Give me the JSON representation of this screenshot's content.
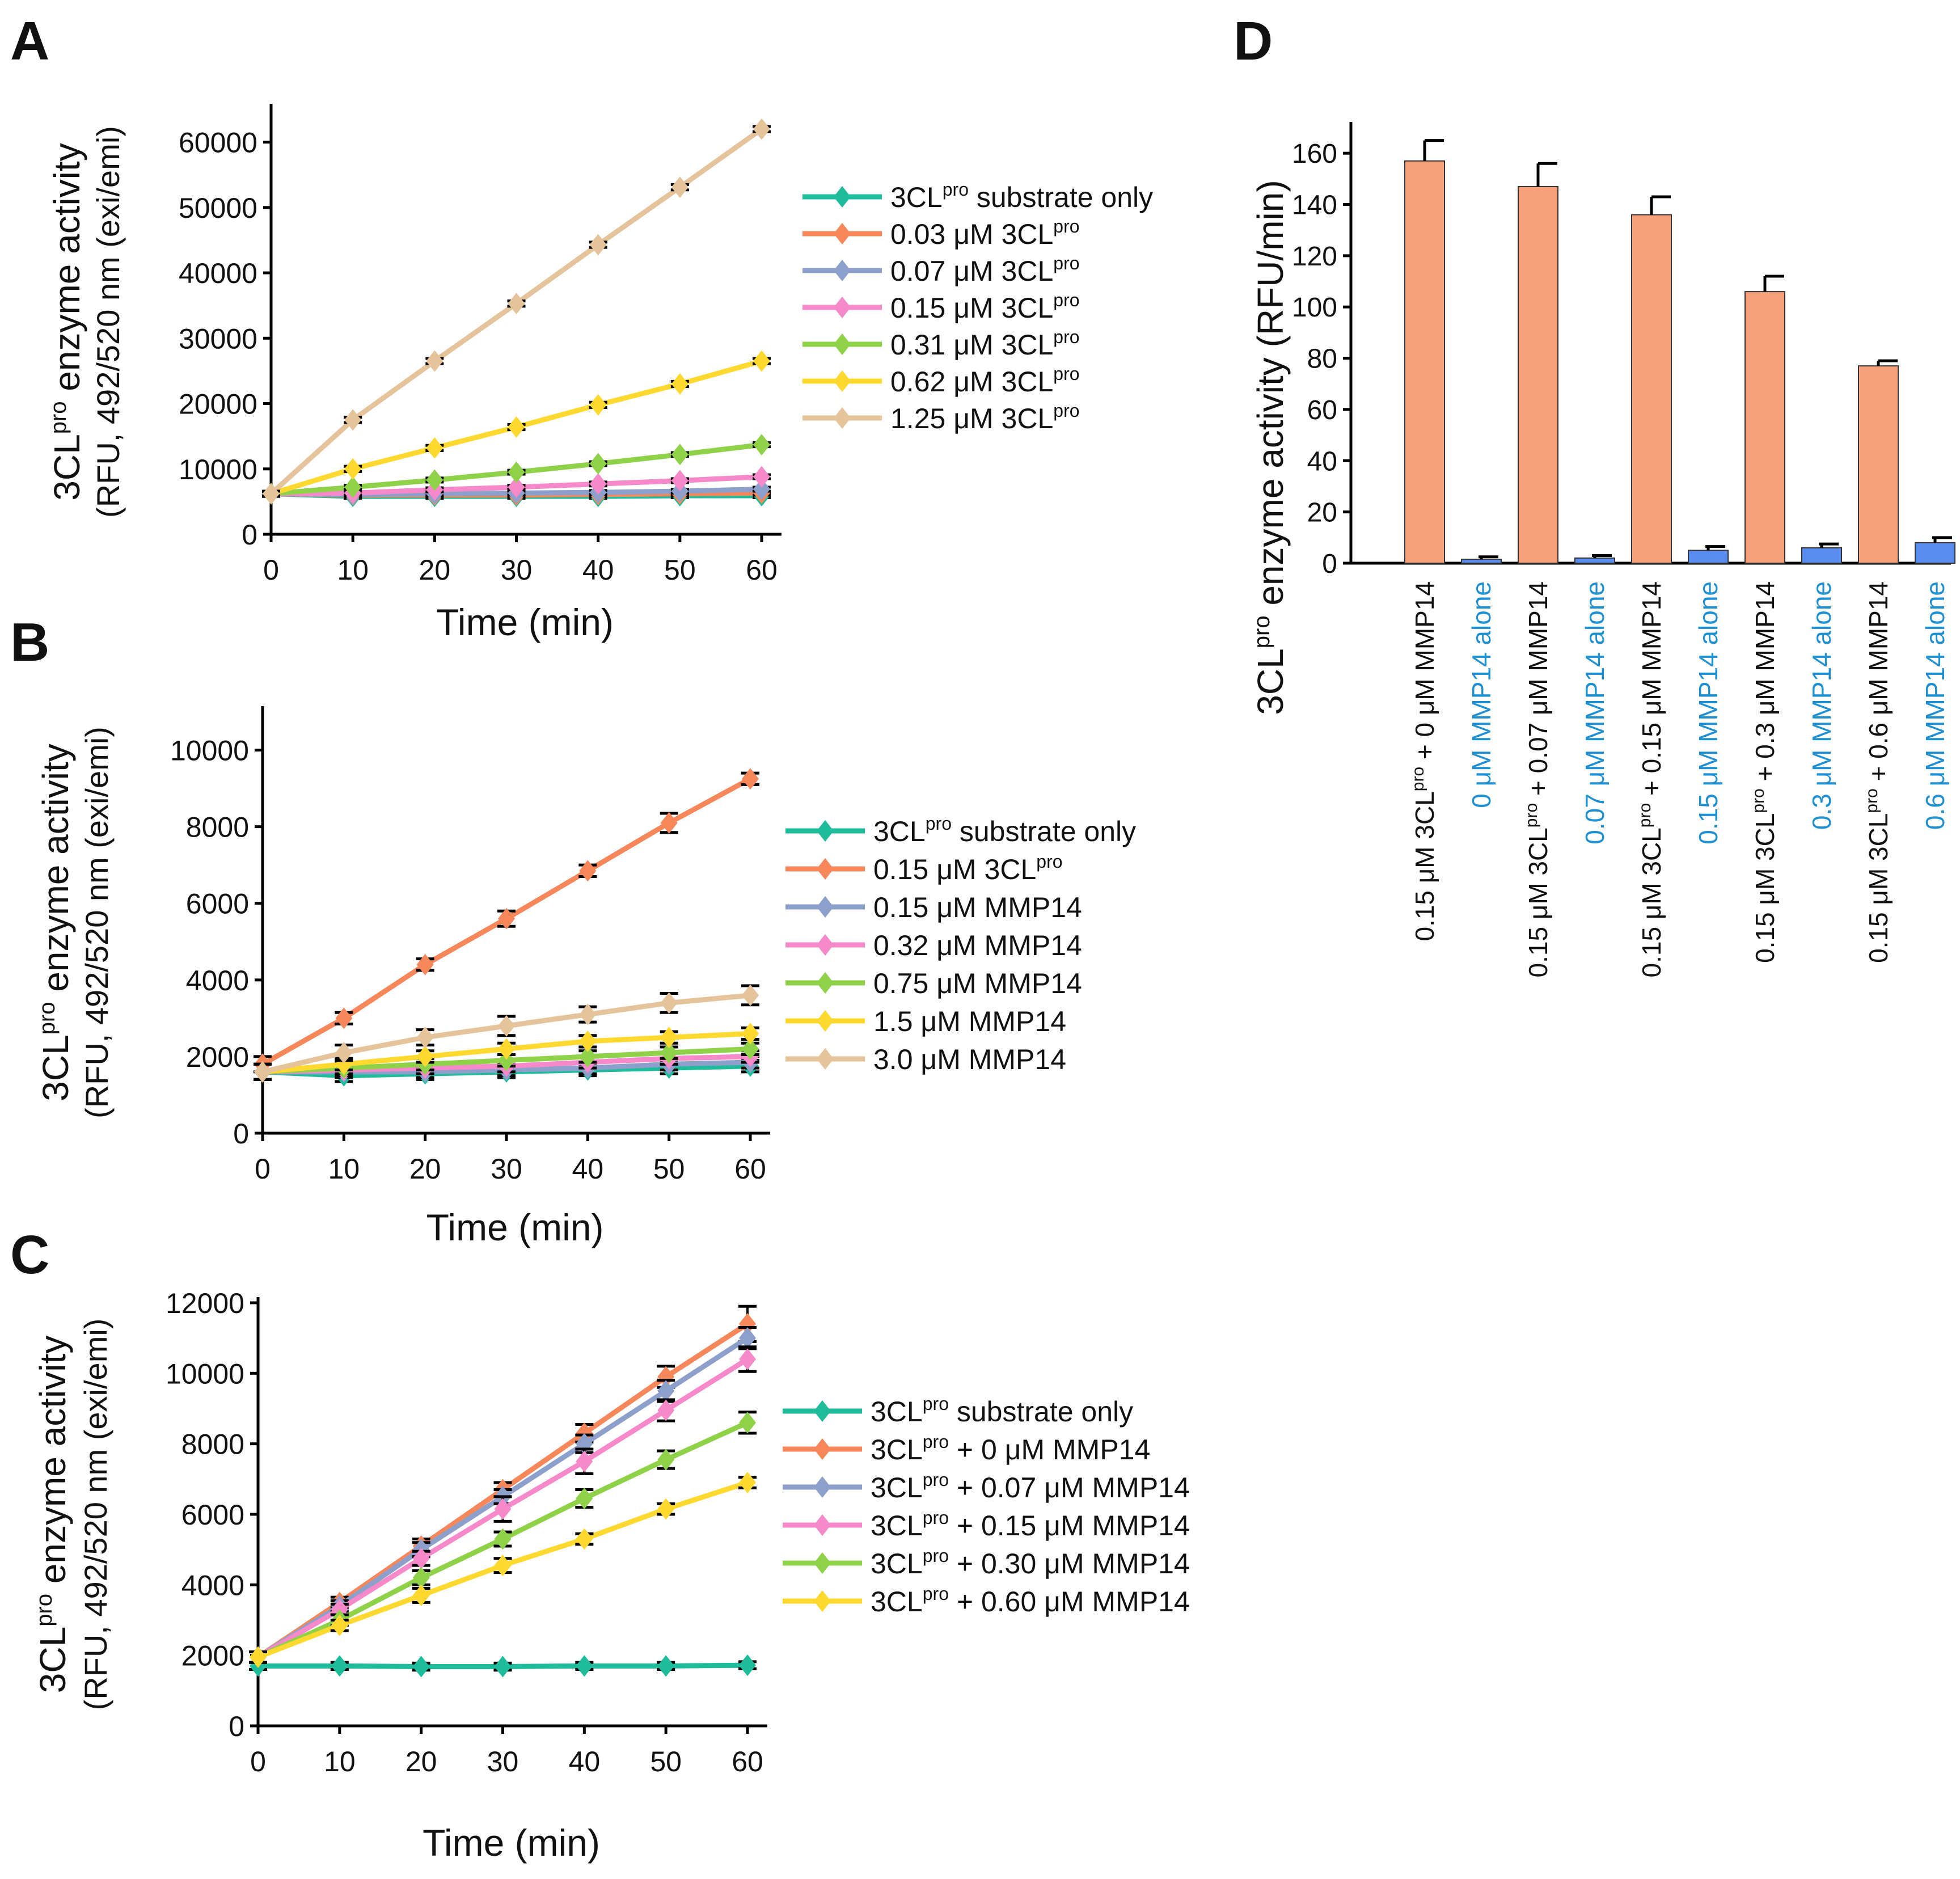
{
  "chart_data": [
    {
      "panel": "A",
      "type": "line",
      "ylabel_line1": "3CLpro enzyme activity",
      "ylabel_line2": "(RFU, 492/520 nm (exi/emi)",
      "xlabel": "Time (min)",
      "x": [
        0,
        10,
        20,
        30,
        40,
        50,
        60
      ],
      "ylim": [
        0,
        65000
      ],
      "yticks": [
        0,
        10000,
        20000,
        30000,
        40000,
        50000,
        60000
      ],
      "xticks": [
        0,
        10,
        20,
        30,
        40,
        50,
        60
      ],
      "series": [
        {
          "prefix": "3CL",
          "sup": "pro",
          "suffix": " substrate only",
          "color": "#1fbc9c",
          "values": [
            6200,
            5800,
            5800,
            5800,
            5800,
            5900,
            5900
          ],
          "err": [
            300,
            300,
            300,
            300,
            300,
            300,
            300
          ]
        },
        {
          "prefix": "0.03 μM 3CL",
          "sup": "pro",
          "suffix": "",
          "color": "#f5875b",
          "values": [
            6200,
            6000,
            6000,
            6000,
            6100,
            6200,
            6300
          ],
          "err": [
            300,
            300,
            300,
            300,
            300,
            300,
            300
          ]
        },
        {
          "prefix": "0.07 μM 3CL",
          "sup": "pro",
          "suffix": "",
          "color": "#8da0cb",
          "values": [
            6200,
            6100,
            6200,
            6300,
            6400,
            6600,
            6900
          ],
          "err": [
            300,
            300,
            300,
            300,
            300,
            300,
            300
          ]
        },
        {
          "prefix": "0.15 μM 3CL",
          "sup": "pro",
          "suffix": "",
          "color": "#f589c9",
          "values": [
            6200,
            6300,
            6800,
            7200,
            7700,
            8200,
            8800
          ],
          "err": [
            300,
            300,
            300,
            300,
            300,
            300,
            300
          ]
        },
        {
          "prefix": "0.31 μM 3CL",
          "sup": "pro",
          "suffix": "",
          "color": "#8fd24a",
          "values": [
            6200,
            7200,
            8300,
            9500,
            10800,
            12200,
            13700
          ],
          "err": [
            300,
            300,
            300,
            300,
            300,
            300,
            300
          ]
        },
        {
          "prefix": "0.62 μM 3CL",
          "sup": "pro",
          "suffix": "",
          "color": "#ffd92f",
          "values": [
            6200,
            10000,
            13200,
            16400,
            19800,
            23000,
            26500
          ],
          "err": [
            400,
            400,
            400,
            400,
            400,
            400,
            400
          ]
        },
        {
          "prefix": "1.25 μM 3CL",
          "sup": "pro",
          "suffix": "",
          "color": "#e5c49b",
          "values": [
            6200,
            17500,
            26500,
            35300,
            44300,
            53100,
            62000
          ],
          "err": [
            400,
            400,
            400,
            400,
            400,
            400,
            400
          ]
        }
      ]
    },
    {
      "panel": "B",
      "type": "line",
      "ylabel_line1": "3CLpro enzyme activity",
      "ylabel_line2": "(RFU, 492/520 nm (exi/emi)",
      "xlabel": "Time (min)",
      "x": [
        0,
        10,
        20,
        30,
        40,
        50,
        60
      ],
      "ylim": [
        0,
        11000
      ],
      "yticks": [
        0,
        2000,
        4000,
        6000,
        8000,
        10000
      ],
      "xticks": [
        0,
        10,
        20,
        30,
        40,
        50,
        60
      ],
      "series": [
        {
          "prefix": "3CL",
          "sup": "pro",
          "suffix": " substrate only",
          "color": "#1fbc9c",
          "values": [
            1600,
            1500,
            1550,
            1600,
            1650,
            1700,
            1750
          ],
          "err": [
            200,
            150,
            150,
            150,
            150,
            150,
            150
          ]
        },
        {
          "prefix": "0.15 μM 3CL",
          "sup": "pro",
          "suffix": "",
          "color": "#f5875b",
          "values": [
            1800,
            3000,
            4400,
            5600,
            6850,
            8100,
            9250
          ],
          "err": [
            200,
            150,
            150,
            200,
            150,
            250,
            150
          ]
        },
        {
          "prefix": "0.15 μM MMP14",
          "sup": "",
          "suffix": "",
          "color": "#8da0cb",
          "values": [
            1600,
            1600,
            1600,
            1650,
            1700,
            1800,
            1850
          ],
          "err": [
            200,
            150,
            150,
            150,
            150,
            150,
            150
          ]
        },
        {
          "prefix": "0.32 μM MMP14",
          "sup": "",
          "suffix": "",
          "color": "#f589c9",
          "values": [
            1600,
            1650,
            1700,
            1750,
            1850,
            1950,
            2000
          ],
          "err": [
            200,
            150,
            150,
            150,
            150,
            150,
            150
          ]
        },
        {
          "prefix": "0.75 μM MMP14",
          "sup": "",
          "suffix": "",
          "color": "#8fd24a",
          "values": [
            1600,
            1700,
            1800,
            1900,
            2000,
            2100,
            2200
          ],
          "err": [
            200,
            150,
            150,
            150,
            150,
            150,
            150
          ]
        },
        {
          "prefix": "1.5 μM MMP14",
          "sup": "",
          "suffix": "",
          "color": "#ffd92f",
          "values": [
            1600,
            1800,
            2000,
            2200,
            2400,
            2500,
            2600
          ],
          "err": [
            200,
            150,
            150,
            150,
            150,
            150,
            150
          ]
        },
        {
          "prefix": "3.0 μM MMP14",
          "sup": "",
          "suffix": "",
          "color": "#e5c49b",
          "values": [
            1600,
            2100,
            2500,
            2800,
            3100,
            3400,
            3600
          ],
          "err": [
            200,
            200,
            200,
            250,
            200,
            250,
            250
          ]
        }
      ]
    },
    {
      "panel": "C",
      "type": "line",
      "ylabel_line1": "3CLpro enzyme activity",
      "ylabel_line2": "(RFU, 492/520 nm (exi/emi)",
      "xlabel": "Time (min)",
      "x": [
        0,
        10,
        20,
        30,
        40,
        50,
        60
      ],
      "ylim": [
        0,
        12000
      ],
      "yticks": [
        0,
        2000,
        4000,
        6000,
        8000,
        10000,
        12000
      ],
      "xticks": [
        0,
        10,
        20,
        30,
        40,
        50,
        60
      ],
      "series": [
        {
          "prefix": "3CL",
          "sup": "pro",
          "suffix": " substrate only",
          "color": "#1fbc9c",
          "values": [
            1700,
            1700,
            1680,
            1680,
            1700,
            1700,
            1720
          ],
          "err": [
            100,
            100,
            100,
            100,
            100,
            100,
            100
          ]
        },
        {
          "prefix": "3CL",
          "sup": "pro",
          "suffix": " + 0 μM MMP14",
          "color": "#f5875b",
          "values": [
            1950,
            3500,
            5100,
            6700,
            8300,
            9900,
            11400
          ],
          "err": [
            150,
            150,
            200,
            200,
            250,
            300,
            500
          ]
        },
        {
          "prefix": "3CL",
          "sup": "pro",
          "suffix": " + 0.07 μM MMP14",
          "color": "#8da0cb",
          "values": [
            1950,
            3400,
            5000,
            6500,
            8000,
            9500,
            11000
          ],
          "err": [
            150,
            150,
            200,
            200,
            250,
            300,
            300
          ]
        },
        {
          "prefix": "3CL",
          "sup": "pro",
          "suffix": " + 0.15 μM MMP14",
          "color": "#f589c9",
          "values": [
            1950,
            3300,
            4750,
            6150,
            7500,
            8950,
            10400
          ],
          "err": [
            150,
            150,
            200,
            350,
            350,
            300,
            350
          ]
        },
        {
          "prefix": "3CL",
          "sup": "pro",
          "suffix": " + 0.30 μM MMP14",
          "color": "#8fd24a",
          "values": [
            1950,
            3000,
            4200,
            5300,
            6450,
            7550,
            8600
          ],
          "err": [
            150,
            150,
            200,
            200,
            250,
            250,
            300
          ]
        },
        {
          "prefix": "3CL",
          "sup": "pro",
          "suffix": " + 0.60 μM MMP14",
          "color": "#ffd92f",
          "values": [
            1950,
            2850,
            3700,
            4550,
            5300,
            6150,
            6900
          ],
          "err": [
            150,
            150,
            200,
            200,
            150,
            150,
            150
          ]
        }
      ]
    },
    {
      "panel": "D",
      "type": "bar",
      "ylabel": "3CLpro enzyme activity (RFU/min)",
      "ylim": [
        0,
        170
      ],
      "yticks": [
        0,
        20,
        40,
        60,
        80,
        100,
        120,
        140,
        160
      ],
      "groups": [
        {
          "label_a_pre": "0.15 μM 3CL",
          "label_a_sup": "pro",
          "label_a_post": " + 0 μM MMP14",
          "label_b": "0 μM MMP14 alone",
          "combined": 157,
          "combined_err": 8,
          "alone": 1.5,
          "alone_err": 1
        },
        {
          "label_a_pre": "0.15 μM 3CL",
          "label_a_sup": "pro",
          "label_a_post": " + 0.07 μM MMP14",
          "label_b": "0.07 μM MMP14 alone",
          "combined": 147,
          "combined_err": 9,
          "alone": 2,
          "alone_err": 1
        },
        {
          "label_a_pre": "0.15 μM 3CL",
          "label_a_sup": "pro",
          "label_a_post": " + 0.15 μM MMP14",
          "label_b": "0.15 μM MMP14 alone",
          "combined": 136,
          "combined_err": 7,
          "alone": 5,
          "alone_err": 1.5
        },
        {
          "label_a_pre": "0.15 μM 3CL",
          "label_a_sup": "pro",
          "label_a_post": " + 0.3 μM MMP14",
          "label_b": "0.3 μM MMP14 alone",
          "combined": 106,
          "combined_err": 6,
          "alone": 6,
          "alone_err": 1.5
        },
        {
          "label_a_pre": "0.15 μM 3CL",
          "label_a_sup": "pro",
          "label_a_post": " + 0.6 μM MMP14",
          "label_b": "0.6 μM MMP14 alone",
          "combined": 77,
          "combined_err": 2,
          "alone": 8,
          "alone_err": 2
        }
      ],
      "colors": {
        "combined": "#f7a07c",
        "alone": "#5a8df0",
        "label_b": "#1e8fd0"
      }
    }
  ],
  "panel_labels": [
    "A",
    "B",
    "C",
    "D"
  ]
}
